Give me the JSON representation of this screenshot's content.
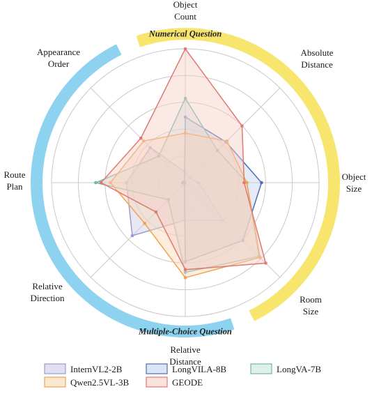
{
  "chart_data": {
    "type": "radar",
    "axes": [
      {
        "lines": [
          "Object",
          "Count"
        ]
      },
      {
        "lines": [
          "Absolute",
          "Distance"
        ]
      },
      {
        "lines": [
          "Object",
          "Size"
        ]
      },
      {
        "lines": [
          "Room",
          "Size"
        ]
      },
      {
        "lines": [
          "Relative",
          "Distance"
        ]
      },
      {
        "lines": [
          "Relative",
          "Direction"
        ]
      },
      {
        "lines": [
          "Route",
          "Plan"
        ]
      },
      {
        "lines": [
          "Appearance",
          "Order"
        ]
      }
    ],
    "rlim": [
      0,
      1
    ],
    "grid_rings": 5,
    "bands": [
      {
        "label": "Numerical Question",
        "color": "#f7e56e",
        "from_axis": 0,
        "to_axis": 3
      },
      {
        "label": "Multiple-Choice Question",
        "color": "#8dd3f0",
        "from_axis": 4,
        "to_axis": 7
      }
    ],
    "series": [
      {
        "name": "InternVL2-2B",
        "stroke": "#9b9bd0",
        "fill": "#cccce6",
        "values": [
          0.08,
          0.05,
          0.1,
          0.4,
          0.28,
          0.56,
          0.44,
          0.37
        ]
      },
      {
        "name": "LongVILA-8B",
        "stroke": "#4a6fb5",
        "fill": "#c5d3ea",
        "values": [
          0.49,
          0.43,
          0.57,
          0.61,
          0.59,
          0.01,
          0.02,
          0.01
        ]
      },
      {
        "name": "LongVA-7B",
        "stroke": "#6fb8aa",
        "fill": "#c9e6e0",
        "values": [
          0.63,
          0.34,
          0.46,
          0.78,
          0.67,
          0.18,
          0.67,
          0.28
        ]
      },
      {
        "name": "Qwen2.5VL-3B",
        "stroke": "#f0a250",
        "fill": "#f8d8b5",
        "values": [
          0.37,
          0.44,
          0.46,
          0.79,
          0.71,
          0.43,
          0.56,
          0.44
        ]
      },
      {
        "name": "GEODE",
        "stroke": "#df7a70",
        "fill": "#f6cfc8",
        "values": [
          1.0,
          0.6,
          0.44,
          0.85,
          0.65,
          0.31,
          0.63,
          0.47
        ]
      }
    ],
    "legend": {
      "rows": [
        [
          "InternVL2-2B",
          "LongVILA-8B",
          "LongVA-7B"
        ],
        [
          "Qwen2.5VL-3B",
          "GEODE"
        ]
      ]
    }
  }
}
